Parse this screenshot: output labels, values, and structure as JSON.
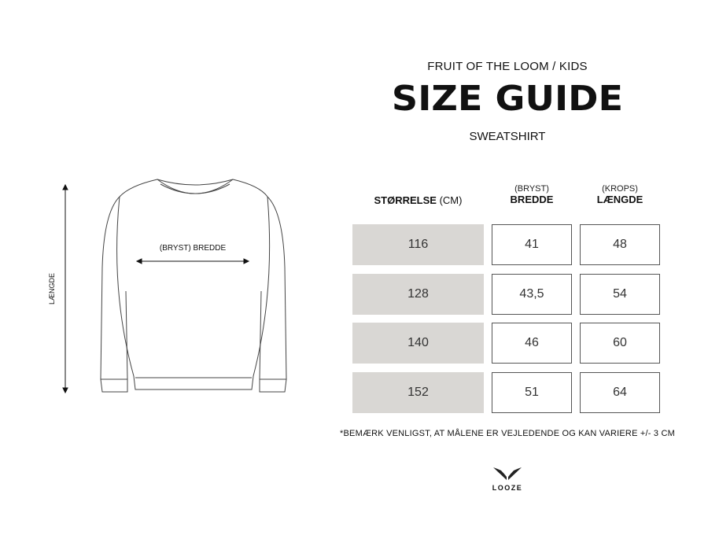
{
  "header": {
    "brand": "FRUIT OF THE LOOM / KIDS",
    "title": "SIZE GUIDE",
    "subtitle": "SWEATSHIRT"
  },
  "diagram": {
    "chest_label": "(BRYST) BREDDE",
    "length_label": "LÆNGDE"
  },
  "table": {
    "col_size": {
      "bold": "STØRRELSE",
      "unit": "(CM)"
    },
    "col_width": {
      "small": "(BRYST)",
      "big": "BREDDE"
    },
    "col_length": {
      "small": "(KROPS)",
      "big": "LÆNGDE"
    },
    "rows": [
      {
        "size": "116",
        "width": "41",
        "length": "48"
      },
      {
        "size": "128",
        "width": "43,5",
        "length": "54"
      },
      {
        "size": "140",
        "width": "46",
        "length": "60"
      },
      {
        "size": "152",
        "width": "51",
        "length": "64"
      }
    ]
  },
  "note": "*BEMÆRK VENLIGST, AT MÅLENE ER VEJLEDENDE OG KAN VARIERE +/- 3 CM",
  "logo": {
    "text": "LOOZE"
  },
  "colors": {
    "size_cell": "#d9d7d4",
    "text": "#111111"
  }
}
